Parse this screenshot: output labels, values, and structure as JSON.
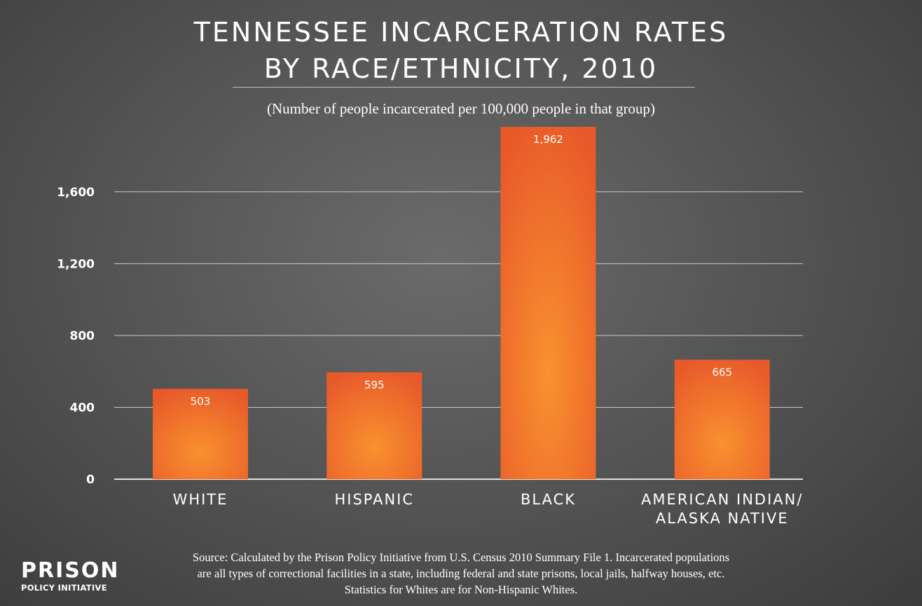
{
  "title_line1": "TENNESSEE INCARCERATION RATES",
  "title_line2": "BY RACE/ETHNICITY, 2010",
  "subtitle": "(Number of people incarcerated per 100,000 people in that group)",
  "source_lines": [
    "Source: Calculated by the Prison Policy Initiative from U.S. Census 2010 Summary File 1. Incarcerated populations",
    "are all types of correctional facilities in a state, including federal and state prisons, local jails, halfway houses, etc.",
    "Statistics for Whites are for Non-Hispanic Whites."
  ],
  "logo": {
    "main": "PRISON",
    "sub": "POLICY INITIATIVE"
  },
  "colors": {
    "bar_center": "#f8912f",
    "bar_edge": "#e85a2a",
    "grid": "#c8c8c8",
    "background": "#5e5e5e"
  },
  "chart_data": {
    "type": "bar",
    "categories": [
      [
        "WHITE"
      ],
      [
        "HISPANIC"
      ],
      [
        "BLACK"
      ],
      [
        "AMERICAN INDIAN/",
        "ALASKA NATIVE"
      ]
    ],
    "values": [
      503,
      595,
      1962,
      665
    ],
    "value_labels": [
      "503",
      "595",
      "1,962",
      "665"
    ],
    "yticks": [
      0,
      400,
      800,
      1200,
      1600
    ],
    "ytick_labels": [
      "0",
      "400",
      "800",
      "1,200",
      "1,600"
    ],
    "ylim": [
      0,
      1962
    ],
    "grid": true,
    "legend": "none"
  }
}
